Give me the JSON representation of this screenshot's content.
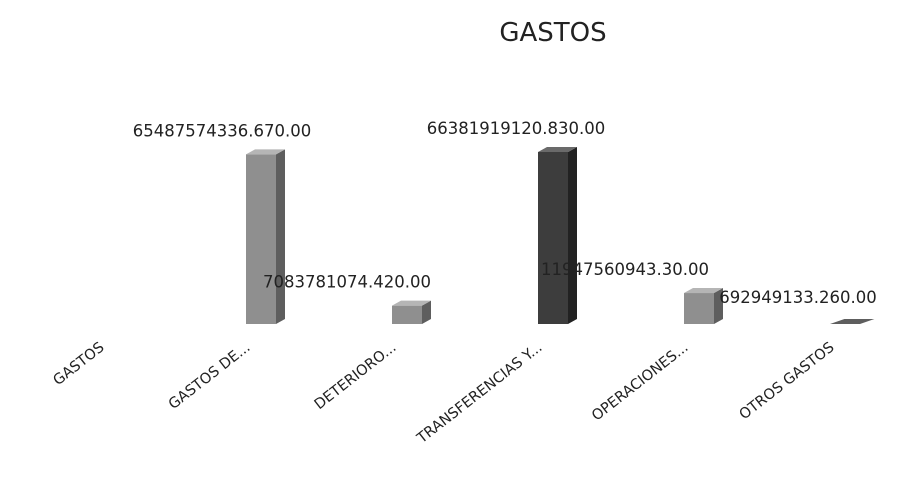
{
  "chart_data": {
    "type": "bar",
    "title": "GASTOS",
    "xlabel": "",
    "ylabel": "",
    "categories": [
      "GASTOS",
      "GASTOS DE...",
      "DETERIORO...",
      "TRANSFERENCIAS Y...",
      "OPERACIONES...",
      "OTROS GASTOS"
    ],
    "values": [
      0,
      65487574336.67,
      7083781074.42,
      66381919120.83,
      11947560943.3,
      692949133.26
    ],
    "data_labels": [
      "",
      "65487574336.670.00",
      "7083781074.420.00",
      "66381919120.830.00",
      "11947560943.30.00",
      "692949133.260.00"
    ],
    "ylim": [
      0,
      66381919120.83
    ],
    "grid": false,
    "legend": "none",
    "style": "3d-column",
    "colors": {
      "bar_front": "#8f8f8f",
      "bar_side": "#5e5e5e",
      "bar_top": "#b5b5b5",
      "bar_front_dark": "#3d3d3d",
      "bar_side_dark": "#222222",
      "bar_top_dark": "#6a6a6a"
    }
  }
}
